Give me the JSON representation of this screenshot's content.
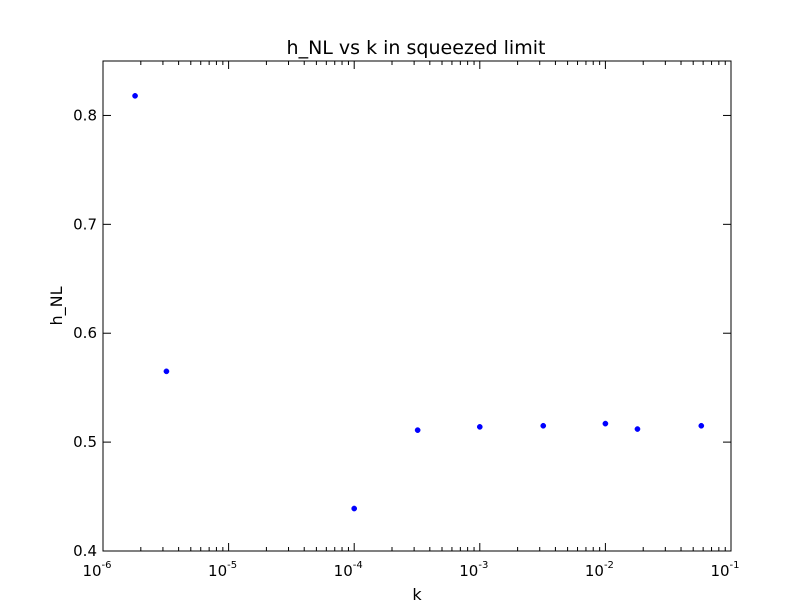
{
  "chart_data": {
    "type": "scatter",
    "title": "h_NL vs k in squeezed limit",
    "xlabel": "k",
    "ylabel": "h_NL",
    "xscale": "log",
    "xlim": [
      1e-06,
      0.1
    ],
    "ylim": [
      0.4,
      0.85
    ],
    "x_ticks": [
      {
        "base": "10",
        "exp": "-6",
        "value": 1e-06
      },
      {
        "base": "10",
        "exp": "-5",
        "value": 1e-05
      },
      {
        "base": "10",
        "exp": "-4",
        "value": 0.0001
      },
      {
        "base": "10",
        "exp": "-3",
        "value": 0.001
      },
      {
        "base": "10",
        "exp": "-2",
        "value": 0.01
      },
      {
        "base": "10",
        "exp": "-1",
        "value": 0.1
      }
    ],
    "y_ticks": [
      {
        "label": "0.4",
        "value": 0.4
      },
      {
        "label": "0.5",
        "value": 0.5
      },
      {
        "label": "0.6",
        "value": 0.6
      },
      {
        "label": "0.7",
        "value": 0.7
      },
      {
        "label": "0.8",
        "value": 0.8
      }
    ],
    "grid": false,
    "marker_color": "#0000ff",
    "series": [
      {
        "points": [
          {
            "x": 1.8e-06,
            "y": 0.818
          },
          {
            "x": 3.2e-06,
            "y": 0.565
          },
          {
            "x": 0.0001,
            "y": 0.439
          },
          {
            "x": 0.00032,
            "y": 0.511
          },
          {
            "x": 0.001,
            "y": 0.514
          },
          {
            "x": 0.0032,
            "y": 0.515
          },
          {
            "x": 0.01,
            "y": 0.517
          },
          {
            "x": 0.018,
            "y": 0.512
          },
          {
            "x": 0.058,
            "y": 0.515
          }
        ]
      }
    ]
  }
}
